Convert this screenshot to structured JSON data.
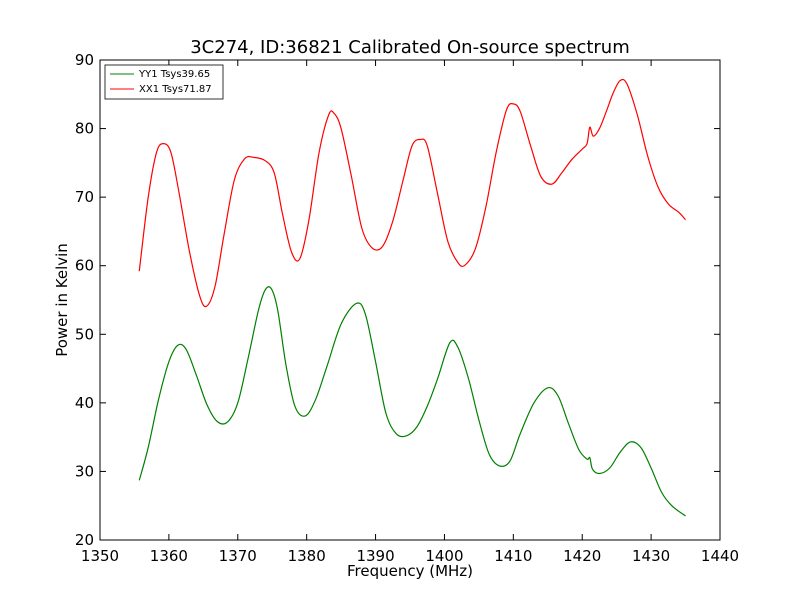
{
  "chart_data": {
    "type": "line",
    "title": "3C274, ID:36821 Calibrated On-source spectrum",
    "xlabel": "Frequency (MHz)",
    "ylabel": "Power in Kelvin",
    "xlim": [
      1350,
      1440
    ],
    "ylim": [
      20,
      90
    ],
    "xticks": [
      1350,
      1360,
      1370,
      1380,
      1390,
      1400,
      1410,
      1420,
      1430,
      1440
    ],
    "yticks": [
      20,
      30,
      40,
      50,
      60,
      70,
      80,
      90
    ],
    "grid": false,
    "legend_position": "top-left",
    "series": [
      {
        "name": "YY1 Tsys39.65",
        "color": "#008000",
        "x": [
          1355.7,
          1357.0,
          1358.5,
          1360.0,
          1361.3,
          1362.5,
          1364.0,
          1365.5,
          1367.0,
          1368.5,
          1370.0,
          1371.5,
          1373.0,
          1374.0,
          1374.9,
          1375.8,
          1377.0,
          1378.3,
          1379.8,
          1381.3,
          1383.0,
          1385.0,
          1387.2,
          1388.5,
          1390.0,
          1391.5,
          1393.0,
          1394.5,
          1396.0,
          1397.5,
          1399.0,
          1400.8,
          1402.0,
          1403.5,
          1405.0,
          1406.5,
          1408.0,
          1409.5,
          1411.0,
          1413.0,
          1415.0,
          1416.5,
          1418.0,
          1419.5,
          1420.7,
          1421.1,
          1421.5,
          1422.5,
          1424.0,
          1425.5,
          1427.0,
          1428.5,
          1430.0,
          1431.5,
          1433.0,
          1435.0
        ],
        "y": [
          28.7,
          33.5,
          40.5,
          46.0,
          48.4,
          47.8,
          44.0,
          39.8,
          37.3,
          37.2,
          40.0,
          46.5,
          53.5,
          56.5,
          56.6,
          53.5,
          45.5,
          39.5,
          38.1,
          40.5,
          45.5,
          51.5,
          54.5,
          53.0,
          46.0,
          38.5,
          35.5,
          35.2,
          36.5,
          39.5,
          43.5,
          48.8,
          48.0,
          43.5,
          37.5,
          32.5,
          30.8,
          31.5,
          35.5,
          40.0,
          42.2,
          41.0,
          37.0,
          33.2,
          31.8,
          32.0,
          30.3,
          29.7,
          30.5,
          32.8,
          34.3,
          33.5,
          30.5,
          27.0,
          25.0,
          23.5
        ]
      },
      {
        "name": "XX1 Tsys71.87",
        "color": "#ff0000",
        "x": [
          1355.7,
          1357.0,
          1358.2,
          1359.2,
          1360.3,
          1361.5,
          1363.0,
          1364.5,
          1365.5,
          1366.7,
          1368.0,
          1369.5,
          1371.0,
          1372.3,
          1374.0,
          1375.3,
          1376.5,
          1377.8,
          1379.0,
          1380.3,
          1381.8,
          1383.2,
          1384.0,
          1385.0,
          1386.5,
          1388.0,
          1389.5,
          1391.0,
          1392.5,
          1394.0,
          1395.3,
          1396.5,
          1397.5,
          1399.0,
          1400.5,
          1402.0,
          1403.0,
          1404.5,
          1406.0,
          1407.5,
          1409.0,
          1410.0,
          1411.0,
          1412.5,
          1414.0,
          1415.6,
          1417.0,
          1418.5,
          1420.0,
          1420.7,
          1421.1,
          1421.6,
          1422.5,
          1423.5,
          1424.5,
          1425.5,
          1426.5,
          1428.0,
          1429.5,
          1431.0,
          1432.5,
          1434.0,
          1435.0
        ],
        "y": [
          59.2,
          70.0,
          76.5,
          77.8,
          76.5,
          70.5,
          62.0,
          55.5,
          54.1,
          57.0,
          64.5,
          72.5,
          75.6,
          75.8,
          75.3,
          73.5,
          67.5,
          62.0,
          61.0,
          66.5,
          76.5,
          82.0,
          82.2,
          80.0,
          73.0,
          65.5,
          62.6,
          62.8,
          66.5,
          72.5,
          77.5,
          78.4,
          77.5,
          70.5,
          63.5,
          60.4,
          60.1,
          62.5,
          68.5,
          76.5,
          82.7,
          83.6,
          82.5,
          77.5,
          73.0,
          71.9,
          73.5,
          75.5,
          77.0,
          77.8,
          80.2,
          78.9,
          80.0,
          82.5,
          85.2,
          87.0,
          86.5,
          82.0,
          76.0,
          71.5,
          69.0,
          67.8,
          66.7
        ]
      }
    ]
  }
}
